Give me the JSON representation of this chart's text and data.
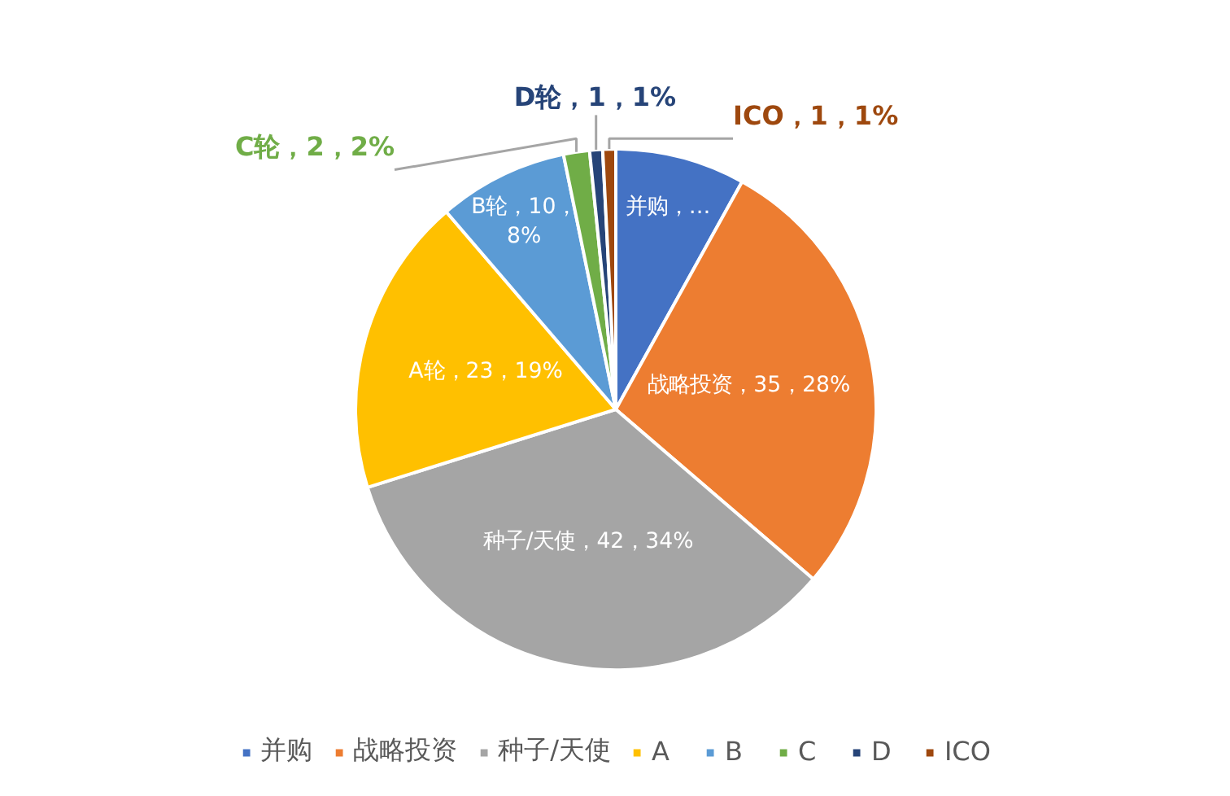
{
  "chart_data": {
    "type": "pie",
    "categories": [
      "并购",
      "战略投资",
      "种子/天使",
      "A",
      "B",
      "C",
      "D",
      "ICO"
    ],
    "values": [
      10,
      35,
      42,
      23,
      10,
      2,
      1,
      1
    ],
    "colors": [
      "#4472c4",
      "#ed7d31",
      "#a5a5a5",
      "#ffc000",
      "#5b9bd5",
      "#70ad47",
      "#264478",
      "#9e480e"
    ],
    "value_labels": [
      "并购，…",
      "战略投资，35，28%",
      "种子/天使，42，34%",
      "A轮，23，19%",
      "B轮，10，8%",
      "C轮，2，2%",
      "D轮，1，1%",
      "ICO，1，1%"
    ],
    "legend": "bottom"
  }
}
